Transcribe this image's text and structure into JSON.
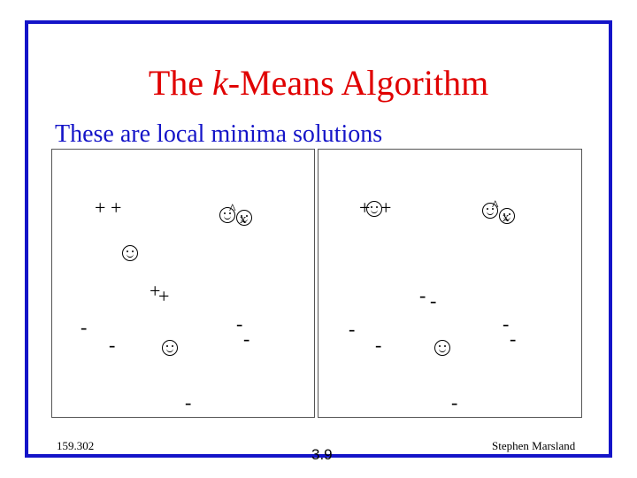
{
  "slide": {
    "title_before": "The ",
    "title_italic": "k",
    "title_after": "-Means Algorithm",
    "subtitle": "These are local minima solutions",
    "footer_left": "159.302",
    "footer_center": "3.9",
    "footer_right": "Stephen Marsland",
    "accent_color": "#1414c8",
    "title_color": "#e00000"
  },
  "panels": {
    "left": {
      "plus_marks": [
        "+",
        "+",
        "+",
        "+"
      ],
      "minus_marks": [
        "-",
        "-",
        "-",
        "-",
        "-"
      ],
      "x_marks": [
        "x"
      ],
      "centroid_icons": [
        "smiley-face-icon",
        "smiley-face-icon",
        "smiley-face-icon"
      ]
    },
    "right": {
      "plus_marks": [
        "+",
        "+"
      ],
      "minus_marks": [
        "-",
        "-",
        "-",
        "-",
        "-",
        "-",
        "-"
      ],
      "x_marks": [
        "x"
      ],
      "centroid_icons": [
        "smiley-face-icon",
        "smiley-face-icon",
        "smiley-face-icon"
      ]
    }
  }
}
